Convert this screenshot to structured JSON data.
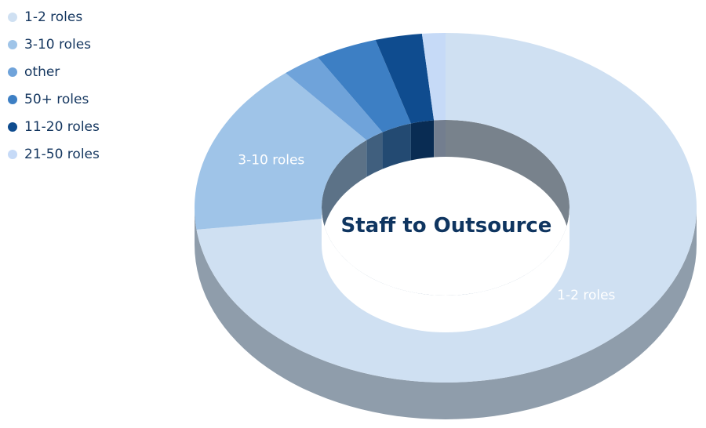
{
  "chart_data": {
    "type": "pie",
    "title": "Staff to Outsource",
    "legend_position": "top-left",
    "categories": [
      "1-2 roles",
      "3-10 roles",
      "other",
      "50+ roles",
      "11-20 roles",
      "21-50 roles"
    ],
    "values": [
      73,
      16,
      2.5,
      4,
      3,
      1.5
    ],
    "colors": [
      "#cfe0f2",
      "#9fc4e8",
      "#6fa3da",
      "#3d7fc4",
      "#0f4c8f",
      "#c6daf7"
    ],
    "slice_labels": [
      "1-2 roles",
      "3-10 roles",
      "",
      "",
      "",
      ""
    ]
  }
}
